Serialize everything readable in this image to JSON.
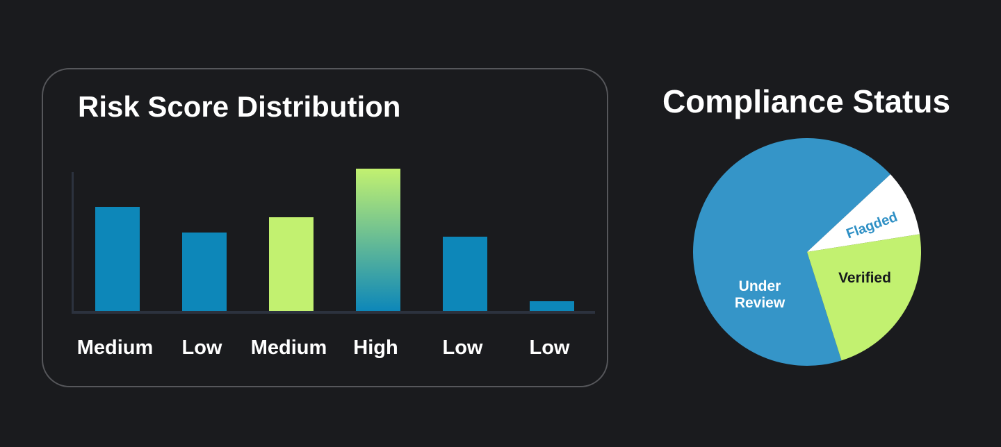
{
  "colors": {
    "background": "#1a1b1e",
    "card_border": "#56575b",
    "axis": "#2c323e",
    "bar_blue": "#0d87b9",
    "lime_green": "#c2f170",
    "pie_blue": "#3595c8",
    "flagged_slice_white": "#ffffff",
    "flagged_label_blue": "#2f90c5"
  },
  "chart_data": [
    {
      "type": "bar",
      "title": "Risk Score Distribution",
      "categories": [
        "Medium",
        "Low",
        "Medium",
        "High",
        "Low",
        "Low"
      ],
      "values": [
        73,
        55,
        66,
        100,
        52,
        7
      ],
      "value_note": "relative bar heights as % of tallest bar; no numeric axis ticks shown",
      "bar_colors": [
        {
          "fill": "#0d87b9"
        },
        {
          "fill": "#0d87b9"
        },
        {
          "fill": "#c2f170"
        },
        {
          "fill": "#c2f170",
          "fill_to": "#0d87b9"
        },
        {
          "fill": "#0d87b9"
        },
        {
          "fill": "#0d87b9"
        }
      ],
      "xlabel": "",
      "ylabel": "",
      "grid": false,
      "legend": false
    },
    {
      "type": "pie",
      "title": "Compliance Status",
      "slices": [
        {
          "label": "Under Review",
          "percent": 68,
          "start_deg": 43,
          "end_deg": 287.6,
          "color": "#3595c8",
          "label_color": "#ffffff"
        },
        {
          "label": "Flagded",
          "percent": 9,
          "start_deg": 9,
          "end_deg": 43,
          "color": "#ffffff",
          "label_color": "#2f90c5"
        },
        {
          "label": "Verified",
          "percent": 23,
          "start_deg": -72.4,
          "end_deg": 9,
          "color": "#c2f170",
          "label_color": "#15181c"
        }
      ],
      "legend": false,
      "labels_inside": true
    }
  ]
}
